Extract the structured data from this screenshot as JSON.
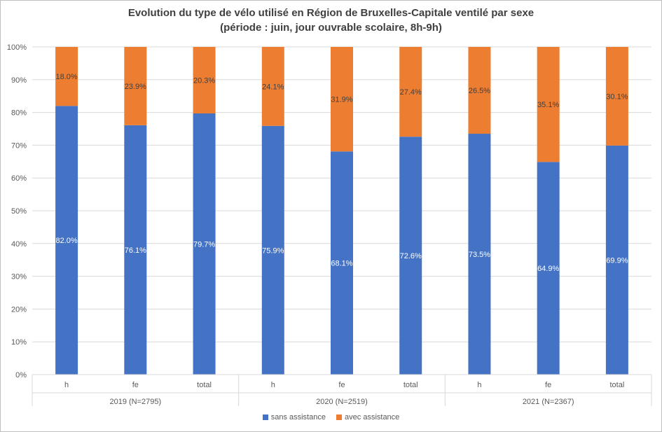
{
  "chart_data": {
    "type": "bar",
    "stacked": true,
    "title_line1": "Evolution du type de vélo utilisé en Région de Bruxelles-Capitale ventilé par sexe",
    "title_line2": "(période : juin, jour ouvrable scolaire, 8h-9h)",
    "groups": [
      {
        "label": "2019 (N=2795)",
        "categories": [
          "h",
          "fe",
          "total"
        ]
      },
      {
        "label": "2020 (N=2519)",
        "categories": [
          "h",
          "fe",
          "total"
        ]
      },
      {
        "label": "2021 (N=2367)",
        "categories": [
          "h",
          "fe",
          "total"
        ]
      }
    ],
    "series": [
      {
        "name": "sans assistance",
        "color": "#4472C4",
        "label_color": "#ffffff",
        "values": [
          82.0,
          76.1,
          79.7,
          75.9,
          68.1,
          72.6,
          73.5,
          64.9,
          69.9
        ],
        "labels": [
          "82.0%",
          "76.1%",
          "79.7%",
          "75.9%",
          "68.1%",
          "72.6%",
          "73.5%",
          "64.9%",
          "69.9%"
        ]
      },
      {
        "name": "avec assistance",
        "color": "#ED7D31",
        "label_color": "#404040",
        "values": [
          18.0,
          23.9,
          20.3,
          24.1,
          31.9,
          27.4,
          26.5,
          35.1,
          30.1
        ],
        "labels": [
          "18.0%",
          "23.9%",
          "20.3%",
          "24.1%",
          "31.9%",
          "27.4%",
          "26.5%",
          "35.1%",
          "30.1%"
        ]
      }
    ],
    "yticks": [
      "0%",
      "10%",
      "20%",
      "30%",
      "40%",
      "50%",
      "60%",
      "70%",
      "80%",
      "90%",
      "100%"
    ],
    "ylim": [
      0,
      100
    ],
    "grid": true,
    "legend_position": "bottom"
  }
}
